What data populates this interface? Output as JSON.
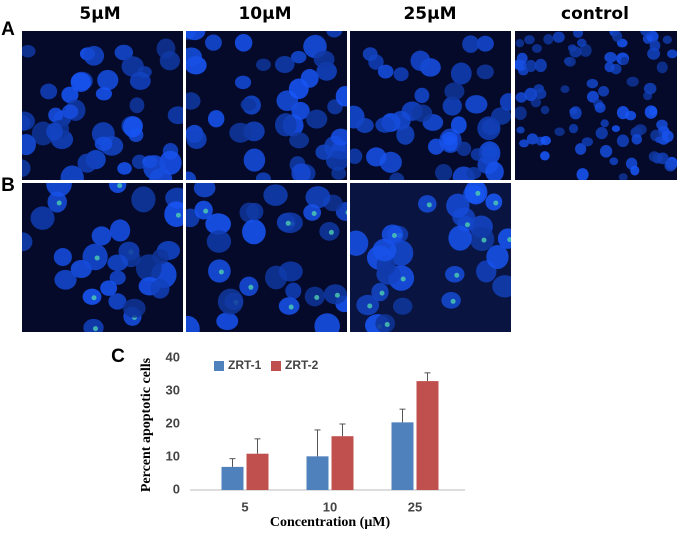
{
  "figure": {
    "columns": [
      "5μM",
      "10μM",
      "25μM",
      "control"
    ],
    "panels": [
      "A",
      "B",
      "C"
    ]
  },
  "chart_data": {
    "type": "bar",
    "categories": [
      "5",
      "10",
      "25"
    ],
    "series": [
      {
        "name": "ZRT-1",
        "color": "#4f81bd",
        "values": [
          7,
          10.2,
          20.5
        ],
        "errors": [
          2.5,
          8,
          4
        ]
      },
      {
        "name": "ZRT-2",
        "color": "#c0504d",
        "values": [
          11,
          16.3,
          33
        ],
        "errors": [
          4.5,
          3.7,
          2.5
        ]
      }
    ],
    "ylim": [
      0,
      40
    ],
    "yticks": [
      0,
      10,
      20,
      30,
      40
    ],
    "xlabel": "Concentration (μM)",
    "ylabel": "Percent apoptotic cells",
    "legend": "top-left"
  }
}
